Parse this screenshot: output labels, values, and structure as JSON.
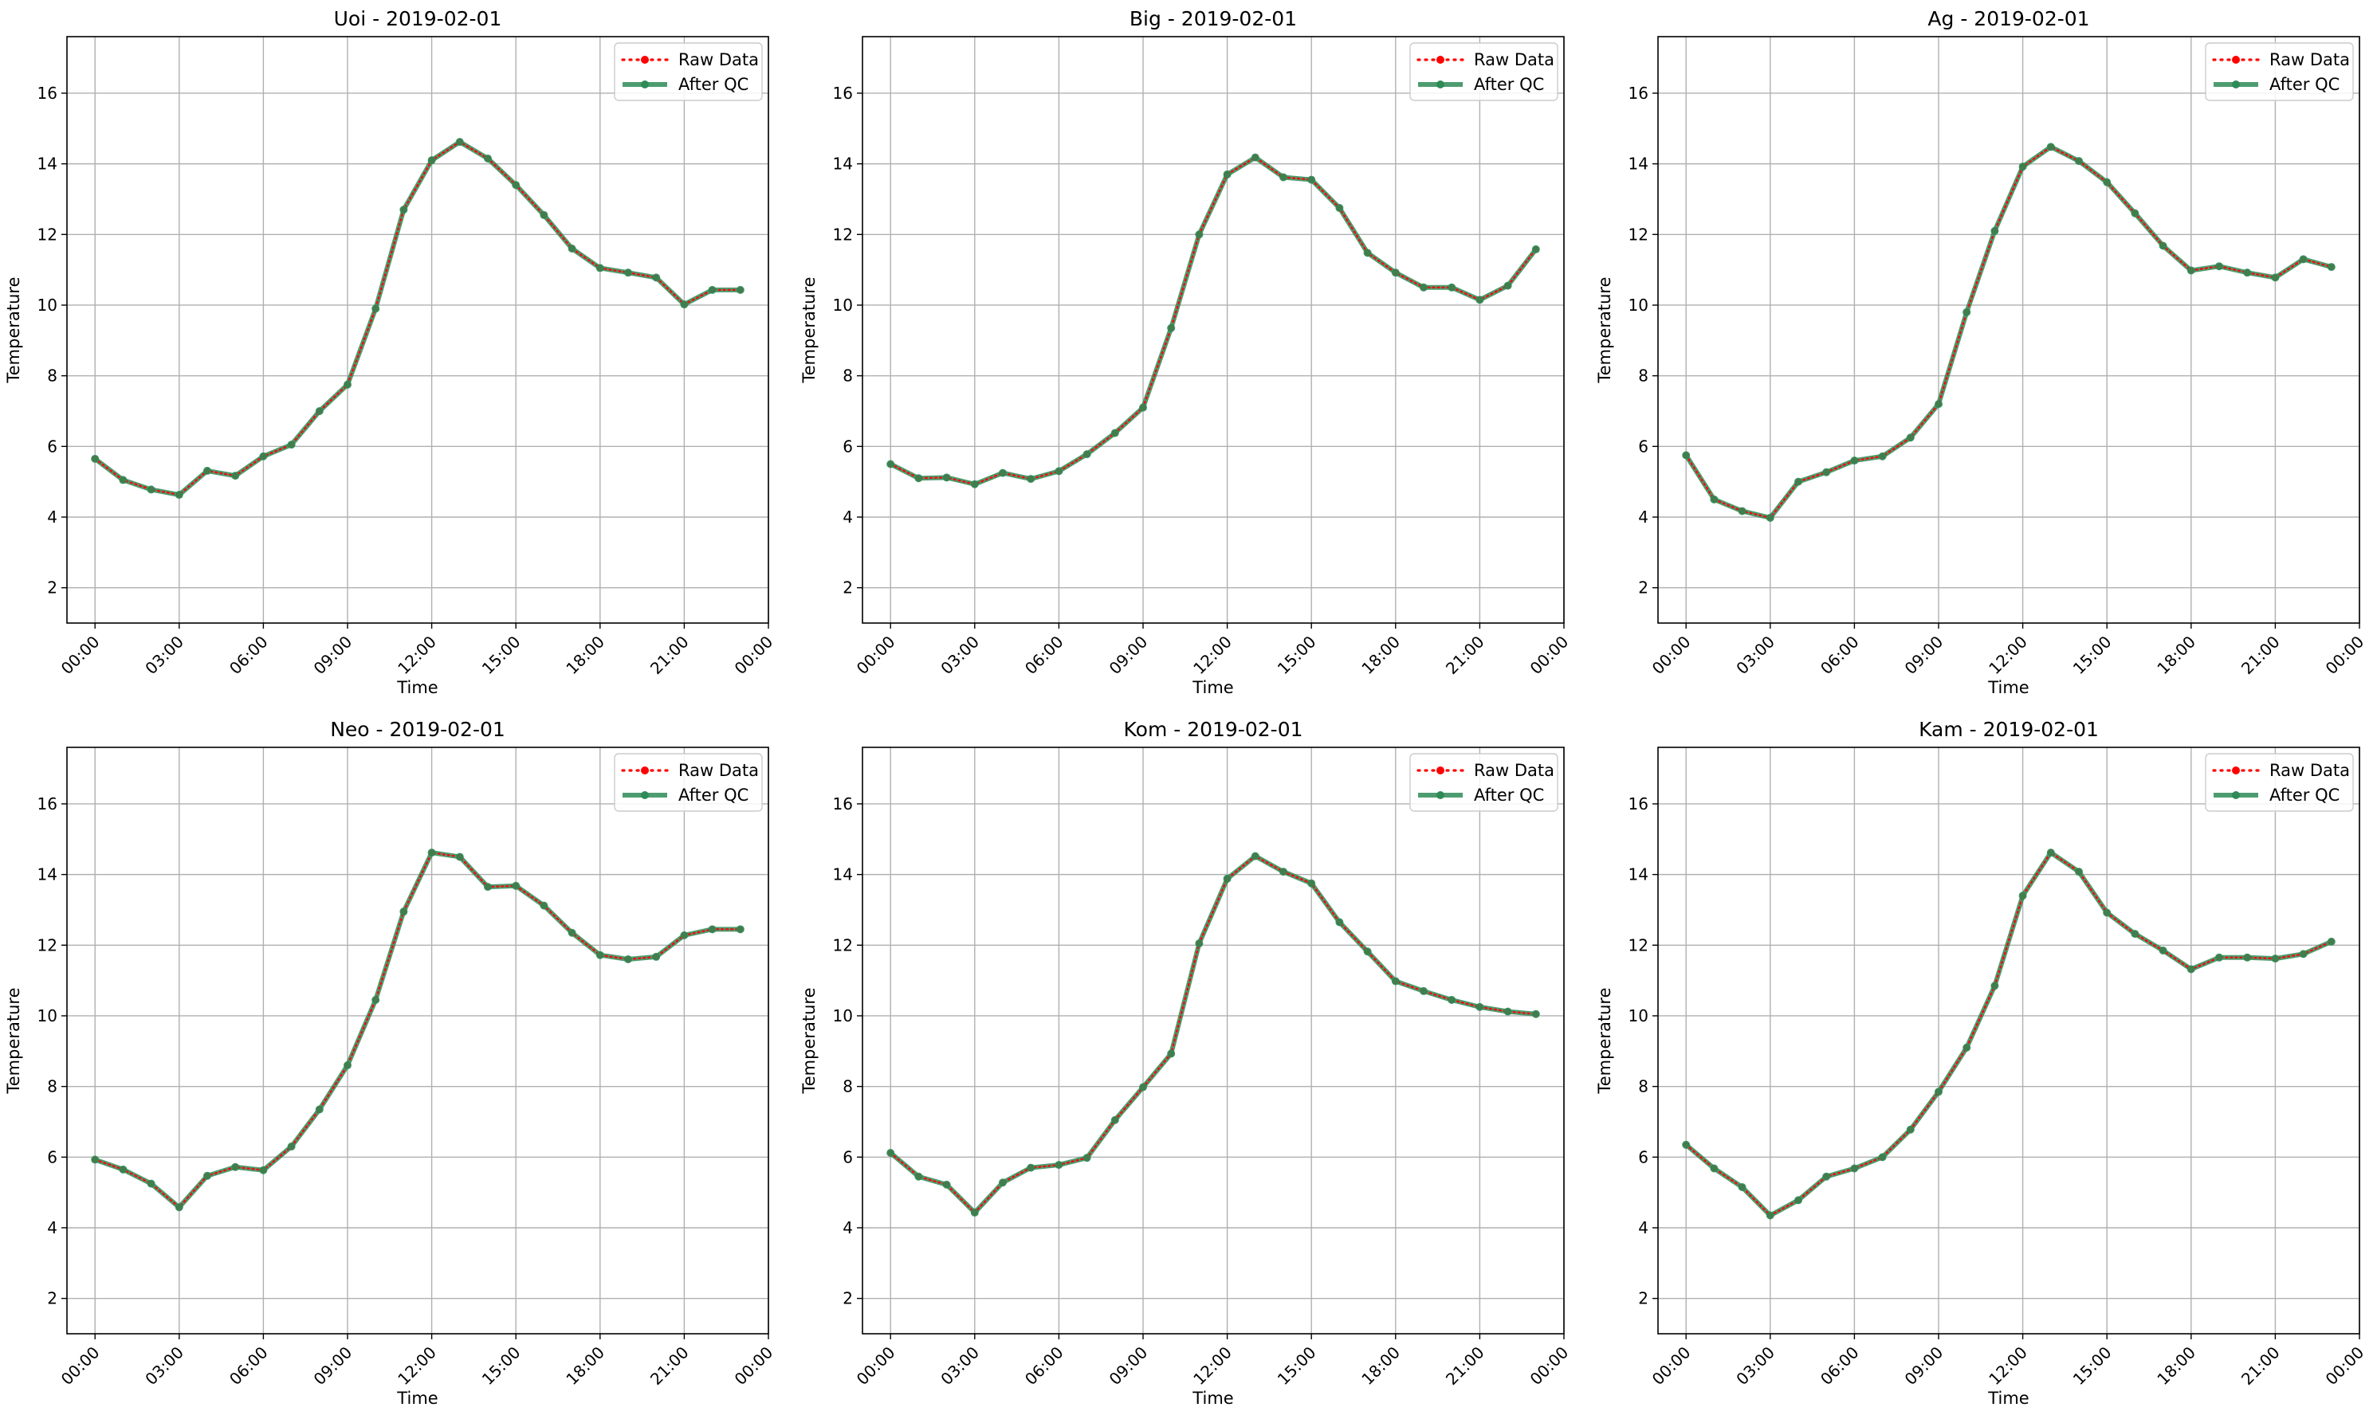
{
  "figure": {
    "colors": {
      "raw": "#ff0000",
      "qc": "#2e8b57",
      "grid": "#b0b0b0",
      "axis": "#000000"
    }
  },
  "chart_data": [
    {
      "type": "line",
      "title": "Uoi - 2019-02-01",
      "xlabel": "Time",
      "ylabel": "Temperature",
      "xticks": [
        "00:00",
        "03:00",
        "06:00",
        "09:00",
        "12:00",
        "15:00",
        "18:00",
        "21:00",
        "00:00"
      ],
      "yticks": [
        2,
        4,
        6,
        8,
        10,
        12,
        14,
        16
      ],
      "xlim": [
        -1,
        24
      ],
      "ylim": [
        1,
        17.6
      ],
      "grid": true,
      "legend_position": "top-right",
      "x": [
        0,
        1,
        2,
        3,
        4,
        5,
        6,
        7,
        8,
        9,
        10,
        11,
        12,
        13,
        14,
        15,
        16,
        17,
        18,
        19,
        20,
        21,
        22,
        23
      ],
      "series": [
        {
          "name": "Raw Data",
          "style": "dotted",
          "values": [
            5.65,
            5.05,
            4.78,
            4.63,
            5.31,
            5.17,
            5.72,
            6.05,
            7.0,
            7.75,
            9.9,
            12.7,
            14.1,
            14.62,
            14.15,
            13.4,
            12.55,
            11.6,
            11.05,
            10.92,
            10.78,
            10.02,
            10.43,
            10.43
          ]
        },
        {
          "name": "After QC",
          "style": "solid",
          "values": [
            5.65,
            5.05,
            4.78,
            4.63,
            5.31,
            5.17,
            5.72,
            6.05,
            7.0,
            7.75,
            9.9,
            12.7,
            14.1,
            14.62,
            14.15,
            13.4,
            12.55,
            11.6,
            11.05,
            10.92,
            10.78,
            10.02,
            10.43,
            10.43
          ]
        }
      ]
    },
    {
      "type": "line",
      "title": "Big - 2019-02-01",
      "xlabel": "Time",
      "ylabel": "Temperature",
      "xticks": [
        "00:00",
        "03:00",
        "06:00",
        "09:00",
        "12:00",
        "15:00",
        "18:00",
        "21:00",
        "00:00"
      ],
      "yticks": [
        2,
        4,
        6,
        8,
        10,
        12,
        14,
        16
      ],
      "xlim": [
        -1,
        24
      ],
      "ylim": [
        1,
        17.6
      ],
      "grid": true,
      "legend_position": "top-right",
      "x": [
        0,
        1,
        2,
        3,
        4,
        5,
        6,
        7,
        8,
        9,
        10,
        11,
        12,
        13,
        14,
        15,
        16,
        17,
        18,
        19,
        20,
        21,
        22,
        23
      ],
      "series": [
        {
          "name": "Raw Data",
          "style": "dotted",
          "values": [
            5.5,
            5.1,
            5.12,
            4.93,
            5.25,
            5.08,
            5.3,
            5.78,
            6.38,
            7.1,
            9.35,
            12.0,
            13.7,
            14.18,
            13.62,
            13.55,
            12.75,
            11.48,
            10.92,
            10.5,
            10.5,
            10.15,
            10.55,
            11.58
          ]
        },
        {
          "name": "After QC",
          "style": "solid",
          "values": [
            5.5,
            5.1,
            5.12,
            4.93,
            5.25,
            5.08,
            5.3,
            5.78,
            6.38,
            7.1,
            9.35,
            12.0,
            13.7,
            14.18,
            13.62,
            13.55,
            12.75,
            11.48,
            10.92,
            10.5,
            10.5,
            10.15,
            10.55,
            11.58
          ]
        }
      ]
    },
    {
      "type": "line",
      "title": "Ag - 2019-02-01",
      "xlabel": "Time",
      "ylabel": "Temperature",
      "xticks": [
        "00:00",
        "03:00",
        "06:00",
        "09:00",
        "12:00",
        "15:00",
        "18:00",
        "21:00",
        "00:00"
      ],
      "yticks": [
        2,
        4,
        6,
        8,
        10,
        12,
        14,
        16
      ],
      "xlim": [
        -1,
        24
      ],
      "ylim": [
        1,
        17.6
      ],
      "grid": true,
      "legend_position": "top-right",
      "x": [
        0,
        1,
        2,
        3,
        4,
        5,
        6,
        7,
        8,
        9,
        10,
        11,
        12,
        13,
        14,
        15,
        16,
        17,
        18,
        19,
        20,
        21,
        22,
        23
      ],
      "series": [
        {
          "name": "Raw Data",
          "style": "dotted",
          "values": [
            5.75,
            4.5,
            4.17,
            3.98,
            5.0,
            5.27,
            5.6,
            5.72,
            6.25,
            7.2,
            9.8,
            12.1,
            13.92,
            14.48,
            14.08,
            13.48,
            12.6,
            11.68,
            10.98,
            11.1,
            10.92,
            10.78,
            11.3,
            11.08
          ]
        },
        {
          "name": "After QC",
          "style": "solid",
          "values": [
            5.75,
            4.5,
            4.17,
            3.98,
            5.0,
            5.27,
            5.6,
            5.72,
            6.25,
            7.2,
            9.8,
            12.1,
            13.92,
            14.48,
            14.08,
            13.48,
            12.6,
            11.68,
            10.98,
            11.1,
            10.92,
            10.78,
            11.3,
            11.08
          ]
        }
      ]
    },
    {
      "type": "line",
      "title": "Neo - 2019-02-01",
      "xlabel": "Time",
      "ylabel": "Temperature",
      "xticks": [
        "00:00",
        "03:00",
        "06:00",
        "09:00",
        "12:00",
        "15:00",
        "18:00",
        "21:00",
        "00:00"
      ],
      "yticks": [
        2,
        4,
        6,
        8,
        10,
        12,
        14,
        16
      ],
      "xlim": [
        -1,
        24
      ],
      "ylim": [
        1,
        17.6
      ],
      "grid": true,
      "legend_position": "top-right",
      "x": [
        0,
        1,
        2,
        3,
        4,
        5,
        6,
        7,
        8,
        9,
        10,
        11,
        12,
        13,
        14,
        15,
        16,
        17,
        18,
        19,
        20,
        21,
        22,
        23
      ],
      "series": [
        {
          "name": "Raw Data",
          "style": "dotted",
          "values": [
            5.93,
            5.65,
            5.25,
            4.58,
            5.47,
            5.72,
            5.63,
            6.3,
            7.35,
            8.6,
            10.45,
            12.95,
            14.62,
            14.5,
            13.65,
            13.68,
            13.12,
            12.35,
            11.72,
            11.6,
            11.67,
            12.28,
            12.45,
            12.45
          ]
        },
        {
          "name": "After QC",
          "style": "solid",
          "values": [
            5.93,
            5.65,
            5.25,
            4.58,
            5.47,
            5.72,
            5.63,
            6.3,
            7.35,
            8.6,
            10.45,
            12.95,
            14.62,
            14.5,
            13.65,
            13.68,
            13.12,
            12.35,
            11.72,
            11.6,
            11.67,
            12.28,
            12.45,
            12.45
          ]
        }
      ]
    },
    {
      "type": "line",
      "title": "Kom - 2019-02-01",
      "xlabel": "Time",
      "ylabel": "Temperature",
      "xticks": [
        "00:00",
        "03:00",
        "06:00",
        "09:00",
        "12:00",
        "15:00",
        "18:00",
        "21:00",
        "00:00"
      ],
      "yticks": [
        2,
        4,
        6,
        8,
        10,
        12,
        14,
        16
      ],
      "xlim": [
        -1,
        24
      ],
      "ylim": [
        1,
        17.6
      ],
      "grid": true,
      "legend_position": "top-right",
      "x": [
        0,
        1,
        2,
        3,
        4,
        5,
        6,
        7,
        8,
        9,
        10,
        11,
        12,
        13,
        14,
        15,
        16,
        17,
        18,
        19,
        20,
        21,
        22,
        23
      ],
      "series": [
        {
          "name": "Raw Data",
          "style": "dotted",
          "values": [
            6.12,
            5.45,
            5.22,
            4.43,
            5.28,
            5.7,
            5.78,
            5.98,
            7.05,
            7.98,
            8.93,
            12.05,
            13.88,
            14.52,
            14.08,
            13.75,
            12.65,
            11.82,
            10.98,
            10.7,
            10.45,
            10.25,
            10.12,
            10.05
          ]
        },
        {
          "name": "After QC",
          "style": "solid",
          "values": [
            6.12,
            5.45,
            5.22,
            4.43,
            5.28,
            5.7,
            5.78,
            5.98,
            7.05,
            7.98,
            8.93,
            12.05,
            13.88,
            14.52,
            14.08,
            13.75,
            12.65,
            11.82,
            10.98,
            10.7,
            10.45,
            10.25,
            10.12,
            10.05
          ]
        }
      ]
    },
    {
      "type": "line",
      "title": "Kam - 2019-02-01",
      "xlabel": "Time",
      "ylabel": "Temperature",
      "xticks": [
        "00:00",
        "03:00",
        "06:00",
        "09:00",
        "12:00",
        "15:00",
        "18:00",
        "21:00",
        "00:00"
      ],
      "yticks": [
        2,
        4,
        6,
        8,
        10,
        12,
        14,
        16
      ],
      "xlim": [
        -1,
        24
      ],
      "ylim": [
        1,
        17.6
      ],
      "grid": true,
      "legend_position": "top-right",
      "x": [
        0,
        1,
        2,
        3,
        4,
        5,
        6,
        7,
        8,
        9,
        10,
        11,
        12,
        13,
        14,
        15,
        16,
        17,
        18,
        19,
        20,
        21,
        22,
        23
      ],
      "series": [
        {
          "name": "Raw Data",
          "style": "dotted",
          "values": [
            6.35,
            5.68,
            5.15,
            4.35,
            4.78,
            5.45,
            5.68,
            6.0,
            6.78,
            7.85,
            9.1,
            10.85,
            13.4,
            14.62,
            14.08,
            12.92,
            12.32,
            11.85,
            11.32,
            11.65,
            11.65,
            11.62,
            11.75,
            12.1
          ]
        },
        {
          "name": "After QC",
          "style": "solid",
          "values": [
            6.35,
            5.68,
            5.15,
            4.35,
            4.78,
            5.45,
            5.68,
            6.0,
            6.78,
            7.85,
            9.1,
            10.85,
            13.4,
            14.62,
            14.08,
            12.92,
            12.32,
            11.85,
            11.32,
            11.65,
            11.65,
            11.62,
            11.75,
            12.1
          ]
        }
      ]
    }
  ]
}
